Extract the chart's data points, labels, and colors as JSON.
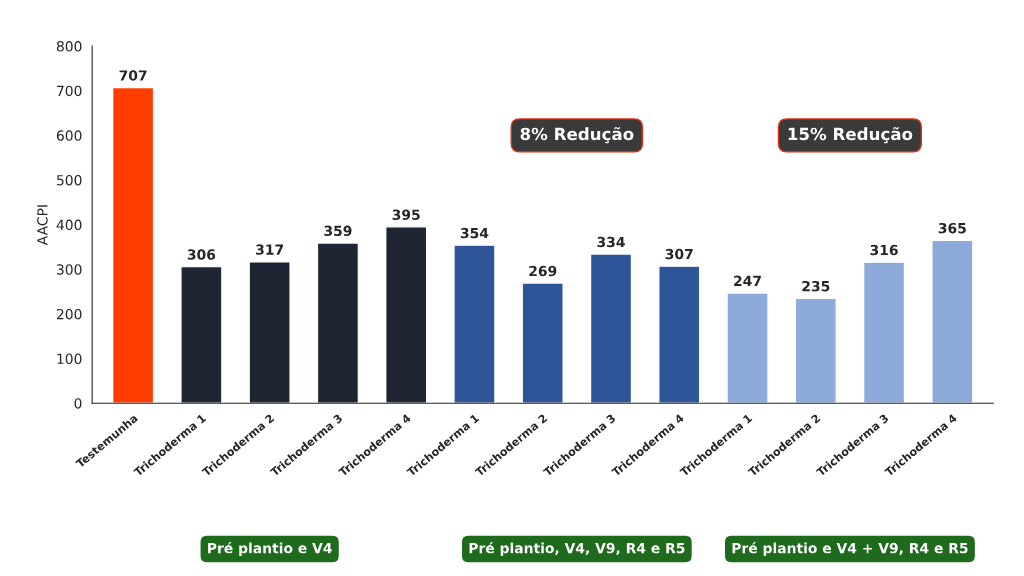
{
  "chart_data": {
    "type": "bar",
    "ylabel": "AACPI",
    "categories": [
      "Testemunha",
      "Trichoderma 1",
      "Trichoderma 2",
      "Trichoderma 3",
      "Trichoderma 4",
      "Trichoderma 1",
      "Trichoderma 2",
      "Trichoderma 3",
      "Trichoderma 4",
      "Trichoderma 1",
      "Trichoderma 2",
      "Trichoderma 3",
      "Trichoderma 4"
    ],
    "values": [
      707,
      306,
      317,
      359,
      395,
      354,
      269,
      334,
      307,
      247,
      235,
      316,
      365
    ],
    "colors": [
      "#ff3d00",
      "#1f2533",
      "#1f2533",
      "#1f2533",
      "#1f2533",
      "#2e5597",
      "#2e5597",
      "#2e5597",
      "#2e5597",
      "#8eaadb",
      "#8eaadb",
      "#8eaadb",
      "#8eaadb"
    ],
    "ylim": [
      0,
      800
    ],
    "yticks": [
      0,
      100,
      200,
      300,
      400,
      500,
      600,
      700,
      800
    ],
    "data_labels": true,
    "grid": false,
    "annotations": [
      "8% Redução",
      "15% Redução",
      "Pré plantio e V4",
      "Pré plantio, V4, V9, R4 e R5",
      "Pré plantio e V4 + V9, R4 e R5"
    ]
  }
}
